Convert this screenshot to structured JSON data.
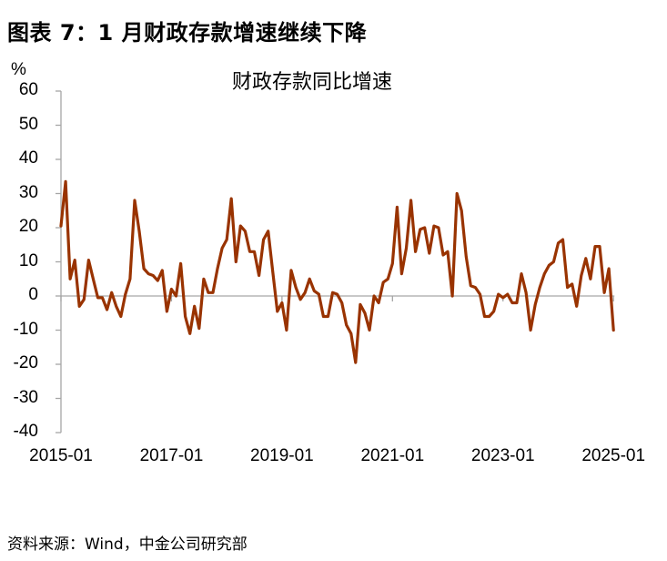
{
  "figure": {
    "title": "图表 7：1 月财政存款增速继续下降",
    "source": "资料来源：Wind，中金公司研究部"
  },
  "colors": {
    "series": "#993300",
    "axis": "#a6a6a6",
    "text": "#000000"
  },
  "chart_data": {
    "type": "line",
    "title": "财政存款同比增速",
    "xlabel": "",
    "ylabel": "%",
    "ylim": [
      -40,
      60
    ],
    "yticks": [
      60,
      50,
      40,
      30,
      20,
      10,
      0,
      -10,
      -20,
      -30,
      -40
    ],
    "xticks": [
      "2015-01",
      "2017-01",
      "2019-01",
      "2021-01",
      "2023-01",
      "2025-01"
    ],
    "grid": false,
    "legend": null,
    "x_start": "2015-01",
    "x_end": "2025-01",
    "frequency": "monthly",
    "series": [
      {
        "name": "财政存款同比增速",
        "values": [
          20.5,
          33.5,
          5.0,
          10.5,
          -3.0,
          -1.0,
          10.5,
          5.0,
          -0.5,
          -0.5,
          -4.0,
          1.0,
          -3.0,
          -6.0,
          0.5,
          5.0,
          28.0,
          19.0,
          8.0,
          6.5,
          6.0,
          4.5,
          7.5,
          -4.5,
          2.0,
          0.0,
          9.5,
          -6.0,
          -11.0,
          -3.0,
          -9.5,
          5.0,
          1.0,
          1.0,
          8.0,
          14.0,
          16.5,
          28.5,
          10.0,
          20.5,
          19.0,
          13.0,
          13.0,
          6.0,
          16.5,
          19.0,
          7.0,
          -4.5,
          -2.0,
          -10.0,
          7.5,
          2.5,
          -1.0,
          1.0,
          5.0,
          1.5,
          0.5,
          -6.0,
          -6.0,
          1.0,
          0.5,
          -2.0,
          -8.5,
          -11.0,
          -19.5,
          -2.5,
          -5.0,
          -10.0,
          0.0,
          -2.0,
          4.0,
          5.0,
          9.5,
          26.0,
          6.5,
          14.0,
          28.0,
          13.0,
          19.5,
          20.0,
          12.5,
          20.5,
          20.0,
          12.0,
          13.0,
          0.0,
          30.0,
          25.0,
          11.5,
          3.0,
          2.5,
          0.5,
          -6.0,
          -6.0,
          -4.5,
          0.5,
          -0.5,
          0.5,
          -2.0,
          -2.0,
          6.5,
          1.0,
          -10.0,
          -2.5,
          2.5,
          6.5,
          9.0,
          10.0,
          15.5,
          16.5,
          2.5,
          3.5,
          -3.0,
          6.0,
          11.0,
          5.0,
          14.5,
          14.5,
          1.0,
          8.0,
          -10.0
        ]
      }
    ]
  }
}
